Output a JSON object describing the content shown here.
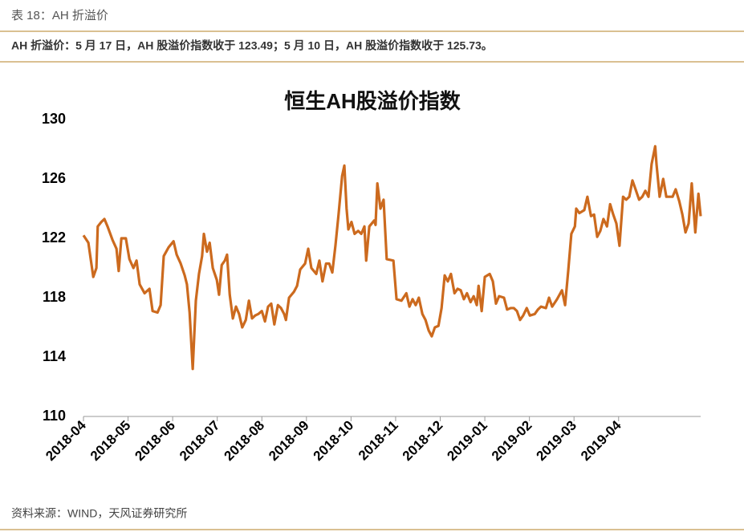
{
  "header": "表 18：AH 折溢价",
  "summary": "AH 折溢价：5 月 17 日，AH 股溢价指数收于 123.49；5 月 10 日，AH 股溢价指数收于 125.73。",
  "source": "资料来源：WIND，天风证券研究所",
  "chart_data": {
    "type": "line",
    "title": "恒生AH股溢价指数",
    "xlim": [
      0,
      13.84
    ],
    "xticks": [
      {
        "value": 0,
        "label": "2018-04"
      },
      {
        "value": 1,
        "label": "2018-05"
      },
      {
        "value": 2,
        "label": "2018-06"
      },
      {
        "value": 3,
        "label": "2018-07"
      },
      {
        "value": 4,
        "label": "2018-08"
      },
      {
        "value": 5,
        "label": "2018-09"
      },
      {
        "value": 6,
        "label": "2018-10"
      },
      {
        "value": 7,
        "label": "2018-11"
      },
      {
        "value": 8,
        "label": "2018-12"
      },
      {
        "value": 9,
        "label": "2019-01"
      },
      {
        "value": 10,
        "label": "2019-02"
      },
      {
        "value": 11,
        "label": "2019-03"
      },
      {
        "value": 12,
        "label": "2019-04"
      }
    ],
    "ylim": [
      110,
      130
    ],
    "yticks": [
      110,
      114,
      118,
      122,
      126,
      130
    ],
    "color": "#cc6a1e",
    "x": [
      0,
      0.11,
      0.22,
      0.29,
      0.32,
      0.4,
      0.47,
      0.54,
      0.65,
      0.74,
      0.79,
      0.85,
      0.95,
      1.03,
      1.12,
      1.19,
      1.26,
      1.37,
      1.48,
      1.55,
      1.66,
      1.73,
      1.8,
      1.91,
      2.02,
      2.09,
      2.18,
      2.27,
      2.32,
      2.38,
      2.45,
      2.52,
      2.59,
      2.66,
      2.7,
      2.77,
      2.83,
      2.9,
      2.99,
      3.04,
      3.1,
      3.17,
      3.22,
      3.28,
      3.35,
      3.42,
      3.49,
      3.56,
      3.64,
      3.71,
      3.78,
      3.85,
      3.92,
      4.0,
      4.07,
      4.14,
      4.21,
      4.28,
      4.36,
      4.43,
      4.5,
      4.54,
      4.61,
      4.72,
      4.79,
      4.86,
      4.97,
      5.04,
      5.11,
      5.22,
      5.29,
      5.36,
      5.44,
      5.51,
      5.58,
      5.65,
      5.72,
      5.8,
      5.85,
      5.9,
      5.94,
      6.01,
      6.08,
      6.16,
      6.23,
      6.3,
      6.34,
      6.41,
      6.52,
      6.55,
      6.59,
      6.66,
      6.73,
      6.8,
      6.95,
      7.02,
      7.13,
      7.24,
      7.31,
      7.38,
      7.45,
      7.52,
      7.6,
      7.67,
      7.74,
      7.81,
      7.88,
      7.96,
      8.03,
      8.1,
      8.17,
      8.24,
      8.32,
      8.39,
      8.46,
      8.53,
      8.6,
      8.68,
      8.75,
      8.82,
      8.86,
      8.93,
      9.0,
      9.11,
      9.18,
      9.25,
      9.32,
      9.43,
      9.5,
      9.58,
      9.65,
      9.72,
      9.79,
      9.86,
      9.94,
      10.01,
      10.12,
      10.19,
      10.26,
      10.37,
      10.44,
      10.51,
      10.62,
      10.73,
      10.8,
      10.87,
      10.94,
      11.02,
      11.05,
      11.12,
      11.23,
      11.3,
      11.38,
      11.45,
      11.52,
      11.59,
      11.66,
      11.74,
      11.81,
      11.88,
      11.95,
      12.02,
      12.1,
      12.17,
      12.24,
      12.31,
      12.38,
      12.46,
      12.53,
      12.6,
      12.67,
      12.74,
      12.82,
      12.85,
      12.92,
      13.0,
      13.07,
      13.21,
      13.28,
      13.36,
      13.43,
      13.5,
      13.57,
      13.64,
      13.72,
      13.79,
      13.84
    ],
    "values": [
      122.2,
      121.7,
      119.4,
      120.0,
      122.8,
      123.1,
      123.3,
      122.8,
      121.9,
      121.3,
      119.8,
      122.0,
      122.0,
      120.6,
      120.0,
      120.5,
      118.9,
      118.3,
      118.6,
      117.1,
      117.0,
      117.5,
      120.8,
      121.4,
      121.8,
      120.9,
      120.3,
      119.5,
      118.9,
      117.0,
      113.2,
      117.8,
      119.6,
      120.8,
      122.3,
      121.1,
      121.7,
      120.0,
      119.2,
      118.2,
      120.2,
      120.5,
      120.9,
      118.2,
      116.6,
      117.4,
      116.9,
      116.0,
      116.5,
      117.8,
      116.6,
      116.8,
      116.9,
      117.1,
      116.4,
      117.4,
      117.6,
      116.2,
      117.5,
      117.3,
      116.9,
      116.5,
      118.0,
      118.4,
      118.8,
      119.9,
      120.3,
      121.3,
      120.0,
      119.6,
      120.5,
      119.1,
      120.3,
      120.3,
      119.7,
      121.5,
      123.6,
      126.2,
      126.9,
      124.0,
      122.6,
      123.1,
      122.3,
      122.5,
      122.3,
      122.8,
      120.5,
      122.8,
      123.2,
      122.9,
      125.7,
      124.0,
      124.6,
      120.6,
      120.5,
      117.9,
      117.8,
      118.3,
      117.4,
      117.9,
      117.5,
      118.0,
      116.9,
      116.5,
      115.8,
      115.4,
      116.0,
      116.1,
      117.3,
      119.5,
      119.1,
      119.6,
      118.3,
      118.6,
      118.5,
      117.9,
      118.3,
      117.7,
      118.1,
      117.5,
      118.8,
      117.1,
      119.4,
      119.6,
      119.1,
      117.6,
      118.1,
      118.0,
      117.2,
      117.3,
      117.3,
      117.1,
      116.5,
      116.8,
      117.3,
      116.8,
      116.9,
      117.2,
      117.4,
      117.3,
      118.0,
      117.4,
      117.9,
      118.5,
      117.5,
      119.8,
      122.3,
      122.8,
      124.0,
      123.7,
      123.9,
      124.8,
      123.5,
      123.6,
      122.1,
      122.5,
      123.3,
      122.8,
      124.3,
      123.6,
      123.0,
      121.5,
      124.8,
      124.6,
      124.8,
      125.9,
      125.3,
      124.6,
      124.8,
      125.2,
      124.8,
      127.0,
      128.2,
      127.0,
      124.8,
      126.0,
      124.8,
      124.8,
      125.3,
      124.5,
      123.6,
      122.4,
      123.0,
      125.7,
      122.4,
      125.0,
      123.49
    ]
  }
}
